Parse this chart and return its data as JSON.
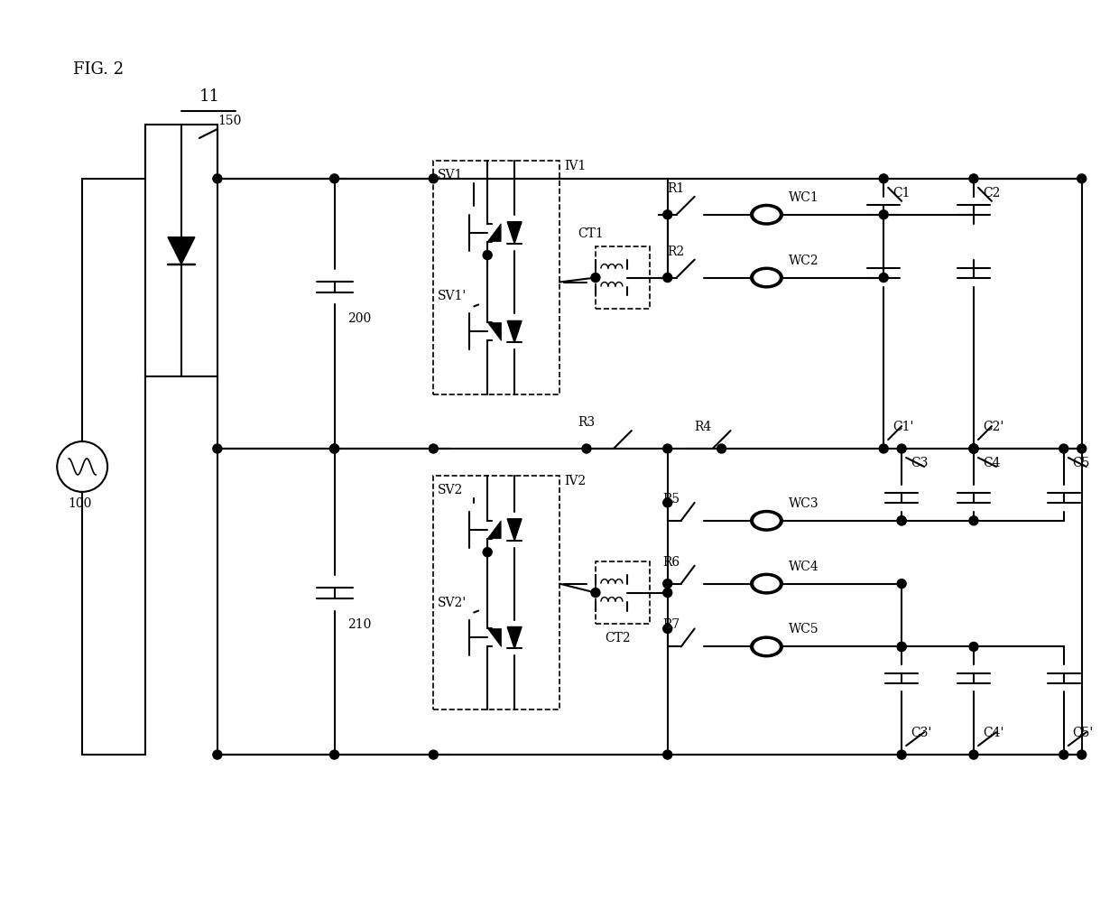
{
  "fig_label": "FIG. 2",
  "device_label": "11",
  "background_color": "#ffffff",
  "line_color": "#000000",
  "line_width": 1.5,
  "component_labels": {
    "source": "100",
    "rectifier": "150",
    "cap200": "200",
    "cap210": "210",
    "sv1": "SV1",
    "sv1p": "SV1'",
    "sv2": "SV2",
    "sv2p": "SV2'",
    "iv1": "IV1",
    "iv2": "IV2",
    "ct1": "CT1",
    "ct2": "CT2",
    "r1": "R1",
    "r2": "R2",
    "r3": "R3",
    "r4": "R4",
    "r5": "R5",
    "r6": "R6",
    "r7": "R7",
    "wc1": "WC1",
    "wc2": "WC2",
    "wc3": "WC3",
    "wc4": "WC4",
    "wc5": "WC5",
    "c1": "C1",
    "c1p": "C1'",
    "c2": "C2",
    "c2p": "C2'",
    "c3": "C3",
    "c3p": "C3'",
    "c4": "C4",
    "c4p": "C4'",
    "c5": "C5",
    "c5p": "C5'"
  }
}
